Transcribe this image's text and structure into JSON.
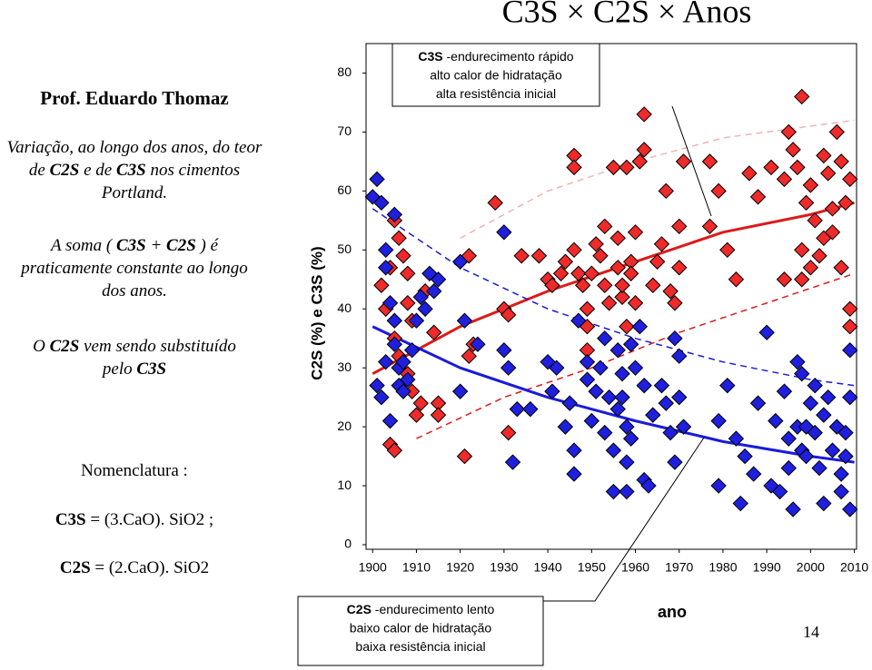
{
  "title": "C3S × C2S × Anos",
  "author": "Prof. Eduardo Thomaz",
  "paragraphs": [
    [
      {
        "text": "Variação, ao longo dos anos, do teor de "
      },
      {
        "text": "C2S",
        "bold": true
      },
      {
        "text": " e de "
      },
      {
        "text": "C3S",
        "bold": true
      },
      {
        "text": " nos cimentos Portland."
      }
    ],
    [
      {
        "text": "A soma ( "
      },
      {
        "text": "C3S",
        "bold": true
      },
      {
        "text": " + "
      },
      {
        "text": "C2S",
        "bold": true
      },
      {
        "text": " ) é praticamente constante ao longo dos anos."
      }
    ],
    [
      {
        "text": "O "
      },
      {
        "text": "C2S",
        "bold": true
      },
      {
        "text": " vem sendo substituído pelo "
      },
      {
        "text": "C3S",
        "bold": true
      }
    ]
  ],
  "nomenclature": {
    "heading": "Nomenclatura :",
    "lines": [
      [
        {
          "text": "C3S",
          "bold": true
        },
        {
          "text": " = (3.CaO). SiO2 ;"
        }
      ],
      [
        {
          "text": "C2S",
          "bold": true
        },
        {
          "text": " = (2.CaO). SiO2"
        }
      ]
    ]
  },
  "annotations": [
    {
      "lines": [
        [
          {
            "text": "C3S",
            "bold": true
          },
          {
            "text": " -endurecimento rápido"
          }
        ],
        [
          {
            "text": "alto calor de hidratação"
          }
        ],
        [
          {
            "text": "alta resistência inicial"
          }
        ]
      ]
    },
    {
      "lines": [
        [
          {
            "text": "C2S",
            "bold": true
          },
          {
            "text": " -endurecimento lento"
          }
        ],
        [
          {
            "text": "baixo calor de hidratação"
          }
        ],
        [
          {
            "text": "baixa resistência inicial"
          }
        ]
      ]
    }
  ],
  "page_number": "14",
  "chart_data": {
    "type": "scatter",
    "x_label": "ano",
    "y_label": "C2S (%) e C3S (%)",
    "xlim": [
      1898.5,
      2010.5
    ],
    "ylim": [
      0,
      85
    ],
    "xticks": [
      1900,
      1910,
      1920,
      1930,
      1940,
      1950,
      1960,
      1970,
      1980,
      1990,
      2000,
      2010
    ],
    "yticks": [
      0,
      10,
      20,
      30,
      40,
      50,
      60,
      70,
      80
    ],
    "marker": "diamond",
    "series": [
      {
        "color": "#ee2a2a",
        "x": [
          1902,
          1904,
          1905,
          1906,
          1907,
          1908,
          1908,
          1909,
          1903,
          1905,
          1906,
          1908,
          1909,
          1911,
          1910,
          1904,
          1905,
          1912,
          1914,
          1915,
          1915,
          1922,
          1922,
          1923,
          1921,
          1928,
          1930,
          1931,
          1934,
          1931,
          1938,
          1940,
          1941,
          1943,
          1944,
          1946,
          1946,
          1946,
          1947,
          1948,
          1949,
          1949,
          1949,
          1950,
          1951,
          1952,
          1953,
          1953,
          1954,
          1955,
          1956,
          1956,
          1957,
          1957,
          1958,
          1958,
          1959,
          1959,
          1960,
          1960,
          1961,
          1962,
          1962,
          1964,
          1965,
          1966,
          1967,
          1968,
          1969,
          1970,
          1970,
          1971,
          1977,
          1977,
          1979,
          1981,
          1983,
          1986,
          1988,
          1991,
          1994,
          1994,
          1995,
          1996,
          1997,
          1998,
          1998,
          1999,
          2000,
          2001,
          2002,
          2003,
          2004,
          2005,
          2006,
          2007,
          2008,
          2009,
          2009,
          2009,
          1998,
          2000,
          2003,
          2005,
          2007
        ],
        "values": [
          44,
          47,
          55,
          52,
          49,
          46,
          41,
          38,
          40,
          35,
          32,
          29,
          26,
          24,
          22,
          17,
          16,
          43,
          36,
          24,
          22,
          49,
          32,
          34,
          15,
          58,
          40,
          39,
          49,
          19,
          49,
          45,
          44,
          46,
          48,
          66,
          64,
          50,
          46,
          44,
          40,
          37,
          33,
          46,
          51,
          49,
          54,
          44,
          41,
          64,
          52,
          47,
          42,
          44,
          37,
          64,
          48,
          46,
          53,
          41,
          65,
          73,
          67,
          44,
          48,
          51,
          60,
          43,
          41,
          47,
          54,
          65,
          54,
          65,
          60,
          50,
          45,
          63,
          59,
          64,
          62,
          45,
          70,
          67,
          64,
          76,
          50,
          58,
          61,
          55,
          49,
          66,
          63,
          57,
          70,
          65,
          58,
          62,
          40,
          37,
          45,
          47,
          52,
          53,
          47
        ]
      },
      {
        "color": "#1f1fdd",
        "x": [
          1901,
          1900,
          1902,
          1905,
          1903,
          1903,
          1904,
          1905,
          1905,
          1906,
          1906,
          1907,
          1908,
          1909,
          1910,
          1911,
          1912,
          1913,
          1914,
          1915,
          1901,
          1902,
          1903,
          1904,
          1907,
          1920,
          1920,
          1921,
          1924,
          1930,
          1930,
          1931,
          1932,
          1933,
          1936,
          1940,
          1941,
          1942,
          1944,
          1945,
          1946,
          1946,
          1947,
          1949,
          1949,
          1950,
          1951,
          1952,
          1953,
          1953,
          1954,
          1955,
          1955,
          1956,
          1956,
          1957,
          1957,
          1958,
          1958,
          1958,
          1959,
          1959,
          1960,
          1961,
          1962,
          1962,
          1963,
          1964,
          1966,
          1967,
          1968,
          1969,
          1969,
          1970,
          1970,
          1971,
          1979,
          1979,
          1981,
          1983,
          1984,
          1985,
          1987,
          1988,
          1990,
          1991,
          1992,
          1993,
          1994,
          1995,
          1995,
          1996,
          1997,
          1997,
          1998,
          1998,
          1999,
          2000,
          2001,
          2002,
          2003,
          2003,
          2004,
          2005,
          2006,
          2007,
          2007,
          2008,
          2009,
          2009,
          2009,
          2008,
          1999,
          2001
        ],
        "values": [
          62,
          59,
          58,
          56,
          50,
          47,
          41,
          38,
          34,
          30,
          27,
          26,
          28,
          33,
          38,
          42,
          40,
          46,
          43,
          45,
          27,
          25,
          31,
          21,
          31,
          48,
          26,
          38,
          34,
          53,
          33,
          30,
          14,
          23,
          23,
          31,
          26,
          30,
          20,
          24,
          12,
          16,
          38,
          31,
          28,
          21,
          26,
          30,
          35,
          19,
          25,
          16,
          9,
          23,
          33,
          29,
          25,
          20,
          14,
          9,
          18,
          34,
          30,
          37,
          27,
          11,
          10,
          22,
          27,
          24,
          19,
          35,
          14,
          32,
          25,
          20,
          21,
          10,
          27,
          18,
          7,
          15,
          12,
          24,
          36,
          10,
          21,
          9,
          26,
          18,
          13,
          6,
          31,
          20,
          16,
          29,
          15,
          24,
          19,
          13,
          22,
          7,
          25,
          16,
          20,
          12,
          9,
          19,
          25,
          33,
          6,
          15,
          20,
          27
        ]
      }
    ],
    "curves": [
      {
        "color": "#dd1a1a",
        "style": "solid",
        "x": [
          1900,
          1920,
          1940,
          1960,
          1980,
          2000,
          2010
        ],
        "values": [
          29,
          37,
          43,
          48,
          53,
          56,
          58
        ]
      },
      {
        "color": "#dd1a1a",
        "style": "dashed",
        "x": [
          1910,
          1930,
          1950,
          1970,
          1990,
          2010
        ],
        "values": [
          18,
          25,
          30,
          36,
          41,
          46
        ]
      },
      {
        "color": "#f0b4b4",
        "style": "dashed",
        "x": [
          1920,
          1940,
          1960,
          1980,
          2000,
          2010
        ],
        "values": [
          52,
          60,
          65,
          69,
          71,
          72
        ]
      },
      {
        "color": "#1a1add",
        "style": "solid",
        "x": [
          1900,
          1920,
          1940,
          1960,
          1980,
          2000,
          2010
        ],
        "values": [
          37,
          30,
          25,
          21,
          17.5,
          15,
          14
        ]
      },
      {
        "color": "#1a1add",
        "style": "dashed",
        "x": [
          1900,
          1920,
          1940,
          1960,
          1980,
          2000,
          2010
        ],
        "values": [
          57,
          47,
          40,
          35,
          31,
          28,
          27
        ]
      }
    ]
  }
}
